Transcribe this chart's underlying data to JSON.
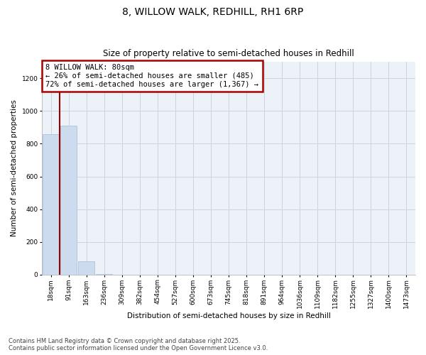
{
  "title": "8, WILLOW WALK, REDHILL, RH1 6RP",
  "subtitle": "Size of property relative to semi-detached houses in Redhill",
  "xlabel": "Distribution of semi-detached houses by size in Redhill",
  "ylabel": "Number of semi-detached properties",
  "property_label": "8 WILLOW WALK: 80sqm",
  "pct_smaller": 26,
  "pct_larger": 72,
  "n_smaller": 485,
  "n_larger": 1367,
  "categories": [
    "18sqm",
    "91sqm",
    "163sqm",
    "236sqm",
    "309sqm",
    "382sqm",
    "454sqm",
    "527sqm",
    "600sqm",
    "673sqm",
    "745sqm",
    "818sqm",
    "891sqm",
    "964sqm",
    "1036sqm",
    "1109sqm",
    "1182sqm",
    "1255sqm",
    "1327sqm",
    "1400sqm",
    "1473sqm"
  ],
  "values": [
    860,
    910,
    80,
    5,
    0,
    0,
    0,
    0,
    0,
    0,
    0,
    0,
    0,
    0,
    0,
    0,
    0,
    0,
    0,
    0,
    0
  ],
  "bar_color": "#ccdcee",
  "bar_edge_color": "#a8c4dc",
  "vline_color": "#990000",
  "vline_x": 0.5,
  "annotation_box_edgecolor": "#aa0000",
  "ylim_max": 1300,
  "yticks": [
    0,
    200,
    400,
    600,
    800,
    1000,
    1200
  ],
  "grid_color": "#c8d4e4",
  "background_color": "#edf2f8",
  "footer_line1": "Contains HM Land Registry data © Crown copyright and database right 2025.",
  "footer_line2": "Contains public sector information licensed under the Open Government Licence v3.0.",
  "title_fontsize": 10,
  "subtitle_fontsize": 8.5,
  "xlabel_fontsize": 7.5,
  "ylabel_fontsize": 7.5,
  "tick_fontsize": 6.5,
  "annotation_fontsize": 7.5,
  "footer_fontsize": 6.0
}
